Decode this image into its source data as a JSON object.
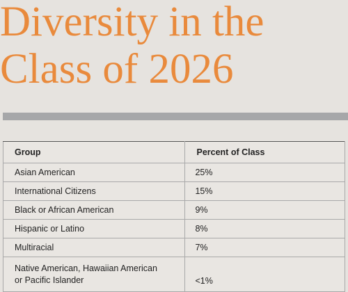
{
  "title": {
    "line1": "Diversity in the",
    "line2": "Class of 2026"
  },
  "table": {
    "headers": [
      "Group",
      "Percent of Class"
    ],
    "rows": [
      {
        "group": "Asian American",
        "percent": "25%"
      },
      {
        "group": "International Citizens",
        "percent": "15%"
      },
      {
        "group": "Black or African American",
        "percent": "9%"
      },
      {
        "group": "Hispanic or Latino",
        "percent": "8%"
      },
      {
        "group": "Multiracial",
        "percent": "7%"
      },
      {
        "group_line1": "Native American, Hawaiian American",
        "group_line2": "or Pacific Islander",
        "percent": "<1%"
      }
    ]
  },
  "colors": {
    "title": "#e98a3c",
    "rule": "#a6a7a9",
    "background": "#e6e3df"
  }
}
